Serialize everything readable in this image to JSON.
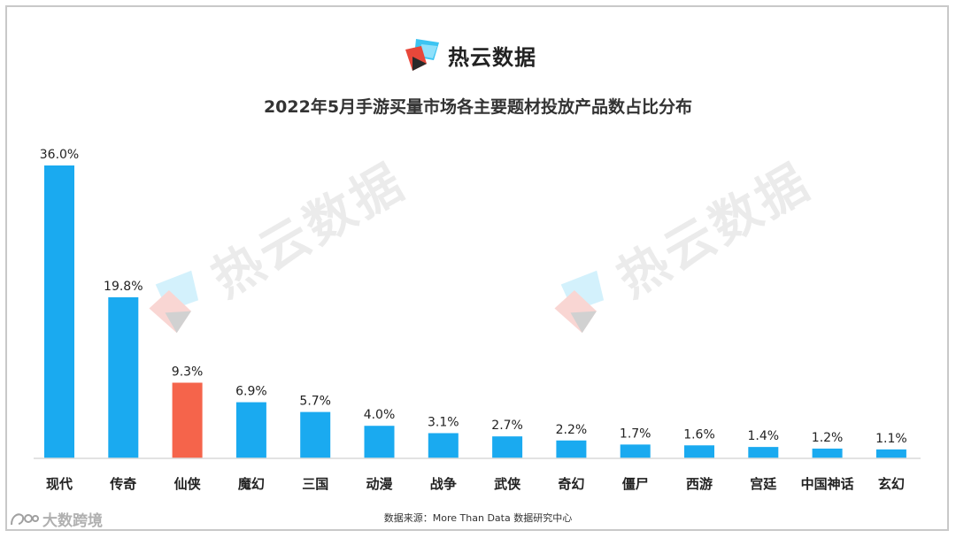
{
  "brand": {
    "name": "热云数据",
    "logo_icon": "reyun-logo-icon"
  },
  "watermark": {
    "text": "热云数据"
  },
  "source": {
    "text": "数据来源：More Than Data 数据研究中心"
  },
  "corner_mark": {
    "text": "大数跨境",
    "icon": "dashujk-logo-icon"
  },
  "colors": {
    "default_bar": "#1aaaf0",
    "highlight_bar": "#f5644b",
    "axis": "#d9d9d9"
  },
  "chart_data": {
    "type": "bar",
    "title": "2022年5月手游买量市场各主要题材投放产品数占比分布",
    "xlabel": "",
    "ylabel": "",
    "categories": [
      "现代",
      "传奇",
      "仙侠",
      "魔幻",
      "三国",
      "动漫",
      "战争",
      "武侠",
      "奇幻",
      "僵尸",
      "西游",
      "宫廷",
      "中国神话",
      "玄幻"
    ],
    "values": [
      36.0,
      19.8,
      9.3,
      6.9,
      5.7,
      4.0,
      3.1,
      2.7,
      2.2,
      1.7,
      1.6,
      1.4,
      1.2,
      1.1
    ],
    "value_labels": [
      "36.0%",
      "19.8%",
      "9.3%",
      "6.9%",
      "5.7%",
      "4.0%",
      "3.1%",
      "2.7%",
      "2.2%",
      "1.7%",
      "1.6%",
      "1.4%",
      "1.2%",
      "1.1%"
    ],
    "highlight_category": "仙侠",
    "ylim": [
      0,
      36
    ],
    "grid": false,
    "legend": "none"
  }
}
